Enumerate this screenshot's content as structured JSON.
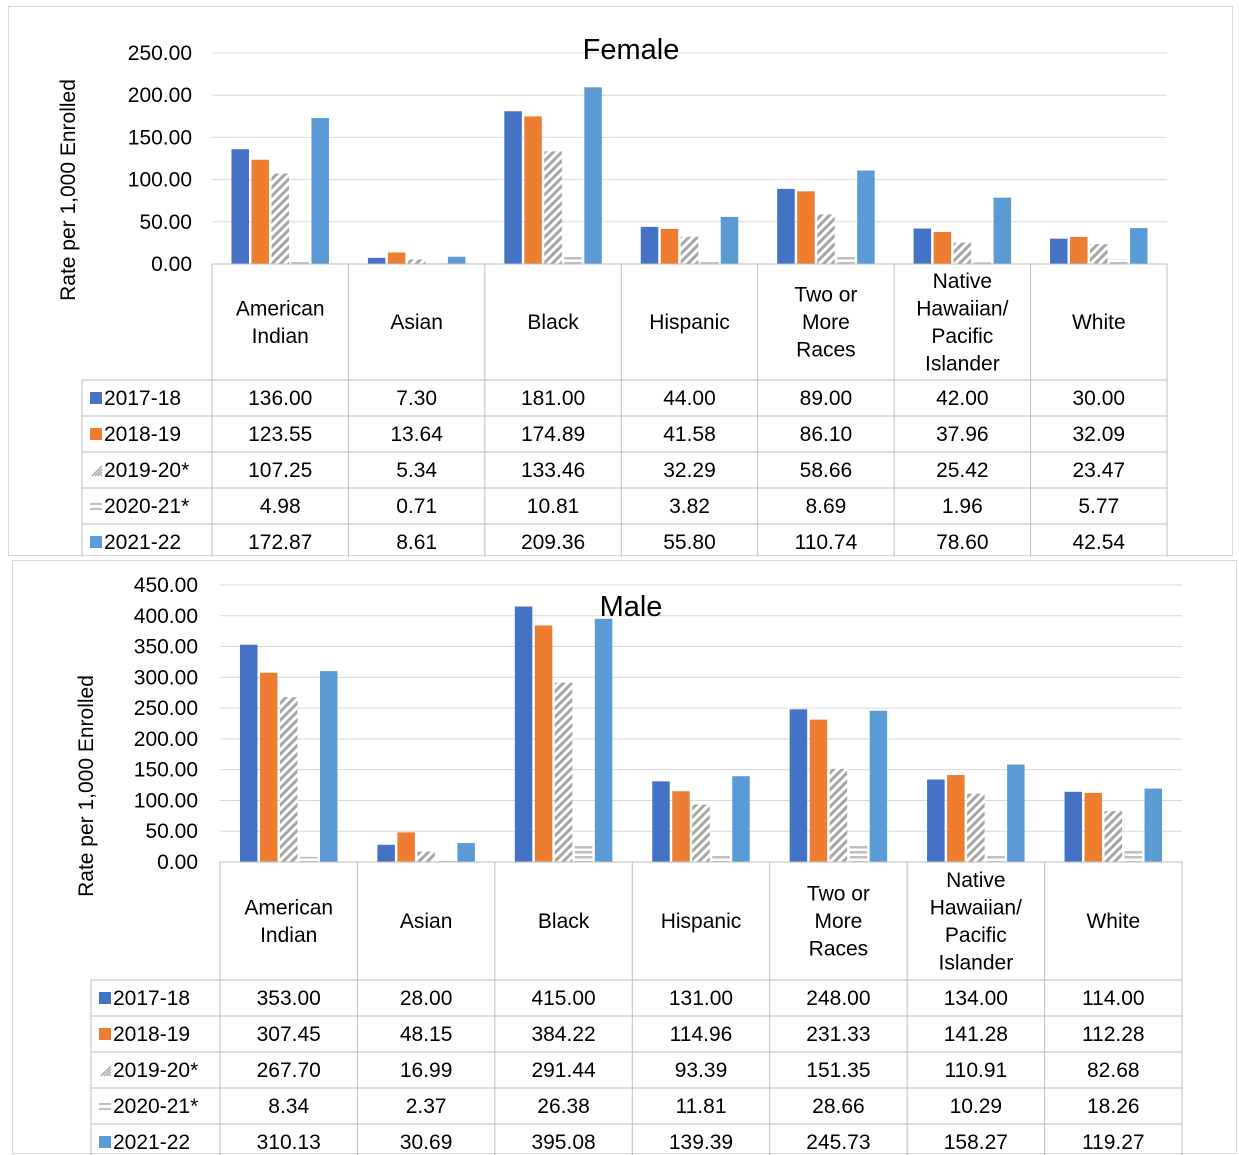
{
  "chart_data": [
    {
      "type": "bar",
      "title": "Female",
      "ylabel": "Rate per 1,000 Enrolled",
      "ylim": [
        0,
        250
      ],
      "yticks": [
        "0.00",
        "50.00",
        "100.00",
        "150.00",
        "200.00",
        "250.00"
      ],
      "categories": [
        [
          "American",
          "Indian"
        ],
        [
          "Asian"
        ],
        [
          "Black"
        ],
        [
          "Hispanic"
        ],
        [
          "Two or",
          "More",
          "Races"
        ],
        [
          "Native",
          "Hawaiian/",
          "Pacific",
          "Islander"
        ],
        [
          "White"
        ]
      ],
      "series": [
        {
          "name": "2017-18",
          "values": [
            136.0,
            7.3,
            181.0,
            44.0,
            89.0,
            42.0,
            30.0
          ],
          "labels": [
            "136.00",
            "7.30",
            "181.00",
            "44.00",
            "89.00",
            "42.00",
            "30.00"
          ]
        },
        {
          "name": "2018-19",
          "values": [
            123.55,
            13.64,
            174.89,
            41.58,
            86.1,
            37.96,
            32.09
          ],
          "labels": [
            "123.55",
            "13.64",
            "174.89",
            "41.58",
            "86.10",
            "37.96",
            "32.09"
          ]
        },
        {
          "name": "2019-20*",
          "values": [
            107.25,
            5.34,
            133.46,
            32.29,
            58.66,
            25.42,
            23.47
          ],
          "labels": [
            "107.25",
            "5.34",
            "133.46",
            "32.29",
            "58.66",
            "25.42",
            "23.47"
          ]
        },
        {
          "name": "2020-21*",
          "values": [
            4.98,
            0.71,
            10.81,
            3.82,
            8.69,
            1.96,
            5.77
          ],
          "labels": [
            "4.98",
            "0.71",
            "10.81",
            "3.82",
            "8.69",
            "1.96",
            "5.77"
          ]
        },
        {
          "name": "2021-22",
          "values": [
            172.87,
            8.61,
            209.36,
            55.8,
            110.74,
            78.6,
            42.54
          ],
          "labels": [
            "172.87",
            "8.61",
            "209.36",
            "55.80",
            "110.74",
            "78.60",
            "42.54"
          ]
        }
      ]
    },
    {
      "type": "bar",
      "title": "Male",
      "ylabel": "Rate per 1,000 Enrolled",
      "ylim": [
        0,
        450
      ],
      "yticks": [
        "0.00",
        "50.00",
        "100.00",
        "150.00",
        "200.00",
        "250.00",
        "300.00",
        "350.00",
        "400.00",
        "450.00"
      ],
      "categories": [
        [
          "American",
          "Indian"
        ],
        [
          "Asian"
        ],
        [
          "Black"
        ],
        [
          "Hispanic"
        ],
        [
          "Two or",
          "More",
          "Races"
        ],
        [
          "Native",
          "Hawaiian/",
          "Pacific",
          "Islander"
        ],
        [
          "White"
        ]
      ],
      "series": [
        {
          "name": "2017-18",
          "values": [
            353.0,
            28.0,
            415.0,
            131.0,
            248.0,
            134.0,
            114.0
          ],
          "labels": [
            "353.00",
            "28.00",
            "415.00",
            "131.00",
            "248.00",
            "134.00",
            "114.00"
          ]
        },
        {
          "name": "2018-19",
          "values": [
            307.45,
            48.15,
            384.22,
            114.96,
            231.33,
            141.28,
            112.28
          ],
          "labels": [
            "307.45",
            "48.15",
            "384.22",
            "114.96",
            "231.33",
            "141.28",
            "112.28"
          ]
        },
        {
          "name": "2019-20*",
          "values": [
            267.7,
            16.99,
            291.44,
            93.39,
            151.35,
            110.91,
            82.68
          ],
          "labels": [
            "267.70",
            "16.99",
            "291.44",
            "93.39",
            "151.35",
            "110.91",
            "82.68"
          ]
        },
        {
          "name": "2020-21*",
          "values": [
            8.34,
            2.37,
            26.38,
            11.81,
            28.66,
            10.29,
            18.26
          ],
          "labels": [
            "8.34",
            "2.37",
            "26.38",
            "11.81",
            "28.66",
            "10.29",
            "18.26"
          ]
        },
        {
          "name": "2021-22",
          "values": [
            310.13,
            30.69,
            395.08,
            139.39,
            245.73,
            158.27,
            119.27
          ],
          "labels": [
            "310.13",
            "30.69",
            "395.08",
            "139.39",
            "245.73",
            "158.27",
            "119.27"
          ]
        }
      ]
    }
  ],
  "colors": {
    "series_2017_18": "#4472c4",
    "series_2018_19": "#ed7d31",
    "series_2019_20_pattern": "#a6a6a6",
    "series_2020_21_pattern": "#bfbfbf",
    "series_2021_22": "#5b9bd5",
    "gridline": "#d9d9d9",
    "table_border": "#bfbfbf"
  }
}
